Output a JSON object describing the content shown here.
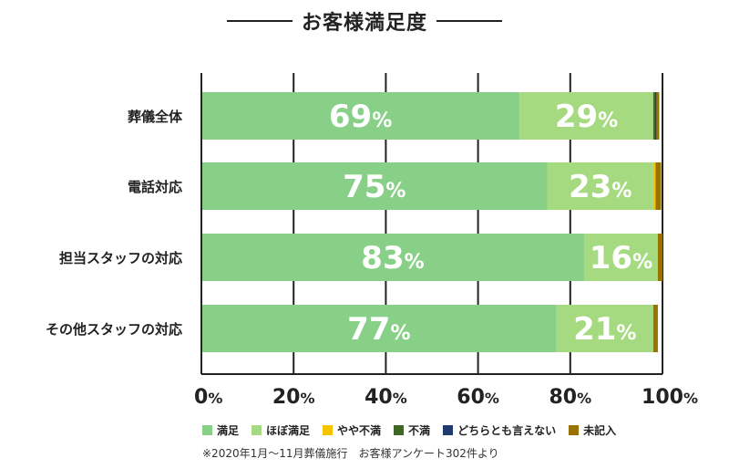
{
  "chart_data": {
    "type": "bar",
    "orientation": "horizontal",
    "stacked": true,
    "title": "お客様満足度",
    "categories": [
      "葬儀全体",
      "電話対応",
      "担当スタッフの対応",
      "その他スタッフの対応"
    ],
    "series": [
      {
        "name": "満足",
        "color": "#88d088",
        "values": [
          69,
          75,
          83,
          77
        ]
      },
      {
        "name": "ほぼ満足",
        "color": "#a6da80",
        "values": [
          29,
          23,
          16,
          21
        ]
      },
      {
        "name": "やや不満",
        "color": "#f5c400",
        "values": [
          0,
          0.5,
          0,
          0
        ]
      },
      {
        "name": "不満",
        "color": "#3f6627",
        "values": [
          0.4,
          0,
          0,
          0
        ]
      },
      {
        "name": "どちらとも言えない",
        "color": "#1f3a6e",
        "values": [
          0.3,
          0,
          0,
          0
        ]
      },
      {
        "name": "未記入",
        "color": "#9a7200",
        "values": [
          0.6,
          1.2,
          1,
          1
        ]
      }
    ],
    "data_labels": [
      [
        "69",
        "29"
      ],
      [
        "75",
        "23"
      ],
      [
        "83",
        "16"
      ],
      [
        "77",
        "21"
      ]
    ],
    "percent_unit": "%",
    "xlim": [
      0,
      100
    ],
    "xticks": [
      "0",
      "20",
      "40",
      "60",
      "80",
      "100"
    ],
    "grid": true,
    "legend_position": "bottom"
  },
  "footnote": "※2020年1月～11月葬儀施行　お客様アンケート302件より"
}
